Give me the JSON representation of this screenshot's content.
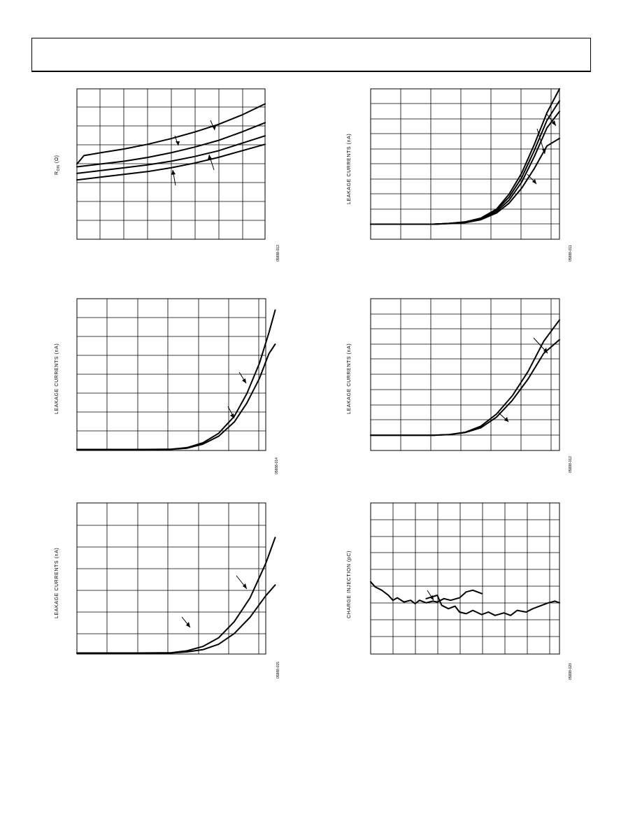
{
  "page": {
    "header": ""
  },
  "chart_data": [
    {
      "id": "chart-ron",
      "type": "line",
      "ylabel_main": "R",
      "ylabel_sub": "ON",
      "ylabel_tail": " (Ω)",
      "code": "05888-013",
      "xlim": [
        0,
        8
      ],
      "ylim": [
        0,
        8
      ],
      "grid": true,
      "series": [
        {
          "x": [
            0,
            0.3,
            1,
            2,
            3,
            4,
            5,
            6,
            7,
            8
          ],
          "values": [
            4.0,
            4.45,
            4.6,
            4.8,
            5.05,
            5.35,
            5.7,
            6.1,
            6.6,
            7.2
          ]
        },
        {
          "x": [
            0,
            1,
            2,
            3,
            4,
            5,
            6,
            7,
            8
          ],
          "values": [
            3.85,
            4.0,
            4.15,
            4.35,
            4.6,
            4.9,
            5.25,
            5.7,
            6.2
          ]
        },
        {
          "x": [
            0,
            1,
            2,
            3,
            4,
            5,
            6,
            7,
            8
          ],
          "values": [
            3.5,
            3.65,
            3.8,
            3.95,
            4.15,
            4.4,
            4.7,
            5.1,
            5.5
          ]
        },
        {
          "x": [
            0,
            1,
            2,
            3,
            4,
            5,
            6,
            7,
            8
          ],
          "values": [
            3.15,
            3.3,
            3.45,
            3.6,
            3.8,
            4.05,
            4.35,
            4.7,
            5.05
          ]
        }
      ]
    },
    {
      "id": "chart-leak-1",
      "type": "line",
      "ylabel": "LEAKAGE CURRENTS (nA)",
      "code": "05888-011",
      "xlim": [
        0,
        6
      ],
      "ylim": [
        0,
        10
      ],
      "grid": true,
      "series": [
        {
          "x": [
            0,
            1,
            2,
            2.5,
            3,
            3.5,
            4,
            4.4,
            4.8,
            5.2,
            5.6,
            6
          ],
          "values": [
            1.0,
            1.0,
            1.0,
            1.05,
            1.15,
            1.4,
            2.0,
            3.0,
            4.4,
            6.3,
            8.4,
            10.0
          ]
        },
        {
          "x": [
            0,
            1,
            2,
            2.5,
            3,
            3.5,
            4,
            4.4,
            4.8,
            5.2,
            5.6,
            6
          ],
          "values": [
            1.0,
            1.0,
            1.0,
            1.05,
            1.15,
            1.38,
            1.95,
            2.8,
            4.1,
            5.9,
            7.9,
            9.2
          ]
        },
        {
          "x": [
            0,
            1,
            2,
            2.5,
            3,
            3.5,
            4,
            4.4,
            4.8,
            5.2,
            5.6,
            6
          ],
          "values": [
            1.0,
            1.0,
            1.0,
            1.05,
            1.12,
            1.33,
            1.85,
            2.6,
            3.8,
            5.5,
            7.4,
            8.5
          ]
        },
        {
          "x": [
            0,
            1,
            2,
            2.5,
            3,
            3.5,
            4,
            4.4,
            4.8,
            5.2,
            5.6,
            6
          ],
          "values": [
            1.0,
            1.0,
            1.0,
            1.04,
            1.1,
            1.3,
            1.75,
            2.4,
            3.4,
            4.7,
            6.2,
            6.7
          ]
        }
      ]
    },
    {
      "id": "chart-leak-2",
      "type": "line",
      "ylabel": "LEAKAGE CURRENTS (nA)",
      "code": "05888-014",
      "xlim": [
        0,
        6
      ],
      "ylim": [
        0,
        8
      ],
      "grid": true,
      "series": [
        {
          "x": [
            0,
            1,
            2,
            3,
            3.5,
            4,
            4.5,
            5,
            5.4,
            5.8,
            6.1,
            6.3
          ],
          "values": [
            0.05,
            0.05,
            0.05,
            0.07,
            0.15,
            0.4,
            0.9,
            1.8,
            3.0,
            4.6,
            6.2,
            7.4
          ]
        },
        {
          "x": [
            0,
            1,
            2,
            3,
            3.5,
            4,
            4.5,
            5,
            5.4,
            5.8,
            6.1,
            6.3
          ],
          "values": [
            0.05,
            0.05,
            0.05,
            0.06,
            0.12,
            0.33,
            0.75,
            1.5,
            2.5,
            3.8,
            5.1,
            5.6
          ]
        }
      ]
    },
    {
      "id": "chart-leak-3",
      "type": "line",
      "ylabel": "LEAKAGE CURRENTS (nA)",
      "code": "05888-012",
      "xlim": [
        0,
        6
      ],
      "ylim": [
        0,
        10
      ],
      "grid": true,
      "series": [
        {
          "x": [
            0,
            1,
            2,
            2.5,
            3,
            3.5,
            4,
            4.5,
            5,
            5.5,
            6
          ],
          "values": [
            1.0,
            1.0,
            1.0,
            1.05,
            1.2,
            1.6,
            2.4,
            3.6,
            5.2,
            7.2,
            8.6
          ]
        },
        {
          "x": [
            0,
            1,
            2,
            2.5,
            3,
            3.5,
            4,
            4.5,
            5,
            5.5,
            6
          ],
          "values": [
            1.0,
            1.0,
            1.0,
            1.05,
            1.18,
            1.5,
            2.2,
            3.3,
            4.7,
            6.4,
            7.3
          ]
        }
      ]
    },
    {
      "id": "chart-leak-4",
      "type": "line",
      "ylabel": "LEAKAGE CURRENTS (nA)",
      "code": "05888-015",
      "xlim": [
        0,
        6
      ],
      "ylim": [
        0,
        7
      ],
      "grid": true,
      "series": [
        {
          "x": [
            0,
            1,
            2,
            3,
            3.5,
            4,
            4.5,
            5,
            5.5,
            6,
            6.3
          ],
          "values": [
            0.05,
            0.05,
            0.05,
            0.06,
            0.15,
            0.35,
            0.75,
            1.5,
            2.6,
            4.2,
            5.4
          ]
        },
        {
          "x": [
            0,
            1,
            2,
            3,
            3.5,
            4,
            4.5,
            5,
            5.5,
            6,
            6.3
          ],
          "values": [
            0.05,
            0.05,
            0.05,
            0.05,
            0.1,
            0.2,
            0.45,
            0.95,
            1.7,
            2.7,
            3.2
          ]
        }
      ]
    },
    {
      "id": "chart-charge",
      "type": "line",
      "ylabel": "CHARGE INJECTION (pC)",
      "code": "05888-020",
      "xlim": [
        0,
        8.5
      ],
      "ylim": [
        0,
        9
      ],
      "grid": true,
      "series": [
        {
          "x": [
            0,
            0.2,
            0.5,
            0.8,
            1.0,
            1.2,
            1.5,
            1.8,
            2.0,
            2.2,
            2.5,
            2.8,
            3.0,
            3.3,
            3.6,
            4.0,
            4.3,
            4.6,
            5.0
          ],
          "values": [
            4.3,
            4.0,
            3.8,
            3.5,
            3.2,
            3.35,
            3.1,
            3.2,
            3.0,
            3.2,
            3.05,
            3.15,
            3.1,
            3.3,
            3.2,
            3.35,
            3.7,
            3.8,
            3.6
          ]
        },
        {
          "x": [
            2.5,
            3.0,
            3.2,
            3.5,
            3.8,
            4.0,
            4.3,
            4.6,
            5.0,
            5.3,
            5.6,
            6.0,
            6.3,
            6.6,
            7.0,
            7.3,
            7.6,
            8.0,
            8.3,
            8.5
          ],
          "values": [
            3.3,
            3.5,
            2.9,
            2.7,
            2.85,
            2.5,
            2.4,
            2.6,
            2.35,
            2.5,
            2.3,
            2.45,
            2.3,
            2.6,
            2.5,
            2.7,
            2.85,
            3.05,
            3.15,
            3.05
          ]
        }
      ]
    }
  ]
}
